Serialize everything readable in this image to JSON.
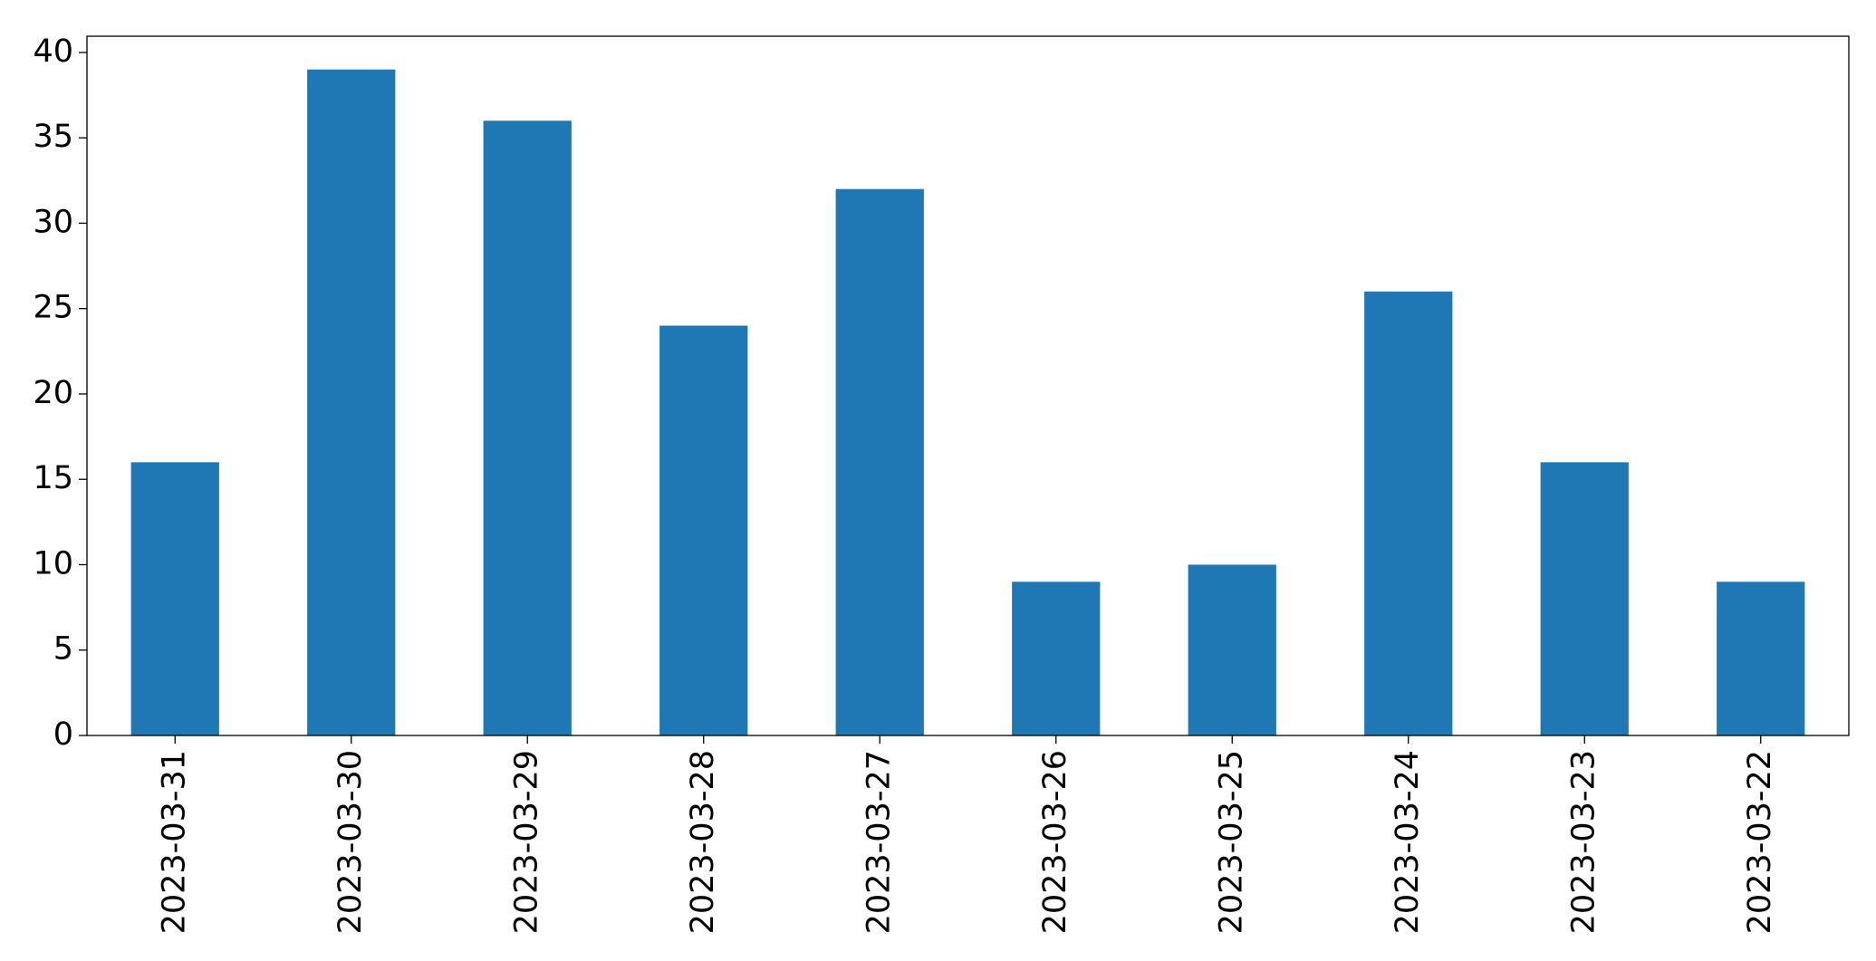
{
  "chart_data": {
    "type": "bar",
    "categories": [
      "2023-03-31",
      "2023-03-30",
      "2023-03-29",
      "2023-03-28",
      "2023-03-27",
      "2023-03-26",
      "2023-03-25",
      "2023-03-24",
      "2023-03-23",
      "2023-03-22"
    ],
    "values": [
      16,
      39,
      36,
      24,
      32,
      9,
      10,
      26,
      16,
      9
    ],
    "color": "#1f77b4",
    "ylim": [
      0,
      40.95
    ],
    "yticks": [
      0,
      5,
      10,
      15,
      20,
      25,
      30,
      35,
      40
    ],
    "grid": false
  }
}
